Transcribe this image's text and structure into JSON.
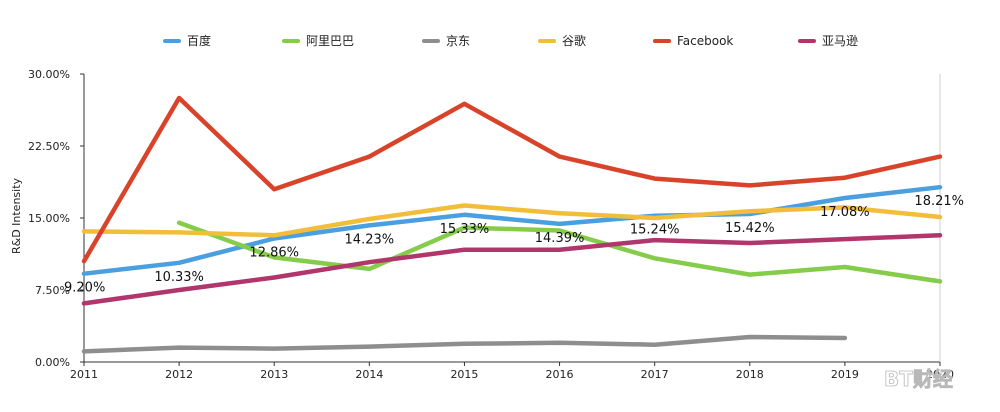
{
  "chart_data": {
    "type": "line",
    "ylabel": "R&D Intensity",
    "x": [
      "2011",
      "2012",
      "2013",
      "2014",
      "2015",
      "2016",
      "2017",
      "2018",
      "2019",
      "2020"
    ],
    "x_tick_labels": [
      "2011",
      "2012",
      "2013",
      "2014",
      "2015",
      "2016",
      "2017",
      "2018",
      "2019",
      "2020"
    ],
    "ylim": [
      0,
      30
    ],
    "y_ticks": [
      0,
      7.5,
      15,
      22.5,
      30
    ],
    "y_tick_labels": [
      "0.00%",
      "7.50%",
      "15.00%",
      "22.50%",
      "30.00%"
    ],
    "grid": false,
    "legend_position": "top",
    "series": [
      {
        "name": "百度",
        "color": "#4A9FE0",
        "values": [
          9.2,
          10.33,
          12.86,
          14.23,
          15.33,
          14.39,
          15.24,
          15.42,
          17.08,
          18.21
        ]
      },
      {
        "name": "阿里巴巴",
        "color": "#84CC4A",
        "values": [
          null,
          14.5,
          10.9,
          9.7,
          14.0,
          13.7,
          10.8,
          9.1,
          9.9,
          8.4
        ]
      },
      {
        "name": "京东",
        "color": "#8E8E8E",
        "values": [
          1.1,
          1.5,
          1.4,
          1.6,
          1.9,
          2.0,
          1.8,
          2.6,
          2.5,
          null
        ]
      },
      {
        "name": "谷歌",
        "color": "#F2BE3A",
        "values": [
          13.6,
          13.5,
          13.2,
          14.9,
          16.3,
          15.5,
          15.0,
          15.7,
          16.1,
          15.1
        ]
      },
      {
        "name": "Facebook",
        "color": "#D9432A",
        "values": [
          10.5,
          27.5,
          18.0,
          21.4,
          26.9,
          21.4,
          19.1,
          18.4,
          19.2,
          21.4
        ]
      },
      {
        "name": "亚马逊",
        "color": "#B0366C",
        "values": [
          6.1,
          7.5,
          8.8,
          10.4,
          11.7,
          11.7,
          12.7,
          12.4,
          12.8,
          13.2
        ]
      }
    ],
    "data_labels": {
      "series": "百度",
      "labels": [
        "9.20%",
        "10.33%",
        "12.86%",
        "14.23%",
        "15.33%",
        "14.39%",
        "15.24%",
        "15.42%",
        "17.08%",
        "18.21%"
      ]
    }
  },
  "watermark": "BT财经"
}
